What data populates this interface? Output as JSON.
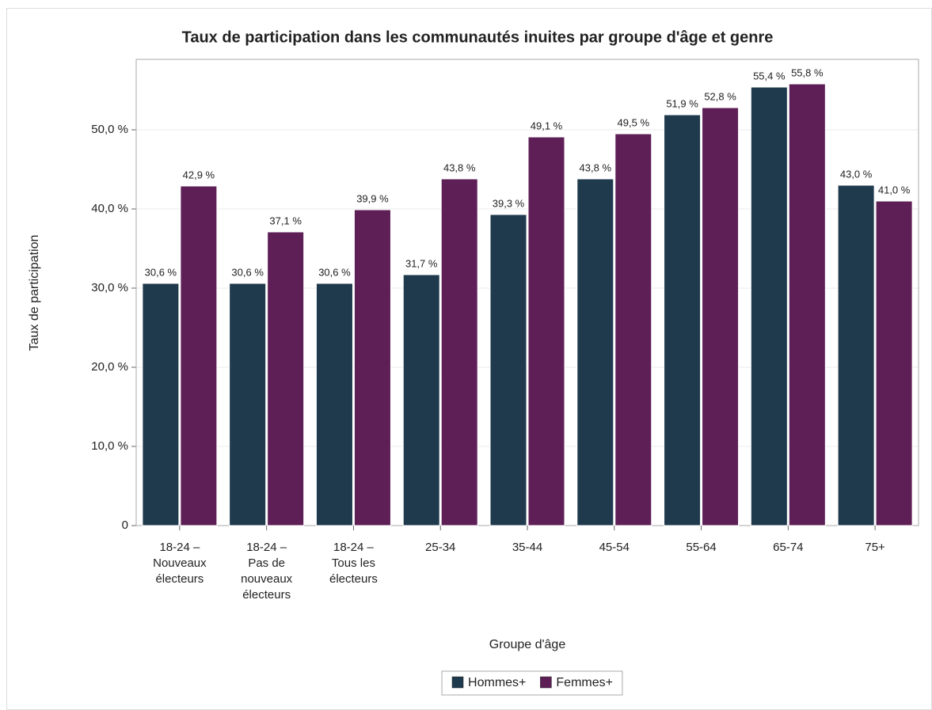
{
  "chart_data": {
    "type": "bar",
    "title": "Taux de participation dans les communautés inuites par groupe d'âge et genre",
    "x_label": "Groupe d'âge",
    "y_label": "Taux de participation",
    "categories": [
      [
        "18-24 –",
        "Nouveaux",
        "électeurs"
      ],
      [
        "18-24 –",
        "Pas de",
        "nouveaux",
        "électeurs"
      ],
      [
        "18-24 –",
        "Tous les",
        "électeurs"
      ],
      [
        "25-34"
      ],
      [
        "35-44"
      ],
      [
        "45-54"
      ],
      [
        "55-64"
      ],
      [
        "65-74"
      ],
      [
        "75+"
      ]
    ],
    "series": [
      {
        "name": "Hommes+",
        "color": "#1f3a4d",
        "values": [
          30.6,
          30.6,
          30.6,
          31.7,
          39.3,
          43.8,
          51.9,
          55.4,
          43.0
        ],
        "value_labels": [
          "30,6 %",
          "30,6 %",
          "30,6 %",
          "31,7 %",
          "39,3 %",
          "43,8 %",
          "51,9 %",
          "55,4 %",
          "43,0 %"
        ]
      },
      {
        "name": "Femmes+",
        "color": "#5e1f57",
        "values": [
          42.9,
          37.1,
          39.9,
          43.8,
          49.1,
          49.5,
          52.8,
          55.8,
          41.0
        ],
        "value_labels": [
          "42,9 %",
          "37,1 %",
          "39,9 %",
          "43,8 %",
          "49,1 %",
          "49,5 %",
          "52,8 %",
          "55,8 %",
          "41,0 %"
        ]
      }
    ],
    "ylim": [
      0,
      58.9
    ],
    "yticks": [
      0,
      {
        "value": 10,
        "label": "10,0 %"
      },
      {
        "value": 20,
        "label": "20,0 %"
      },
      {
        "value": 30,
        "label": "30,0 %"
      },
      {
        "value": 40,
        "label": "40,0 %"
      },
      {
        "value": 50,
        "label": "50,0 %"
      }
    ],
    "grid": true,
    "legend": "bottom"
  }
}
